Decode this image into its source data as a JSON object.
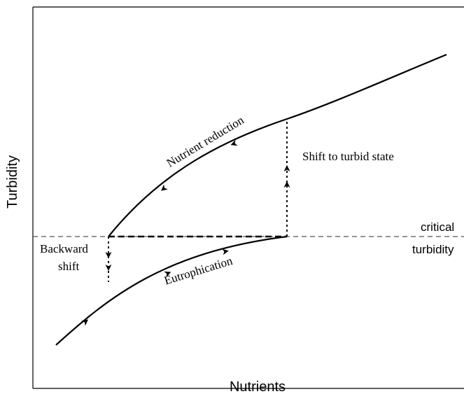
{
  "axes": {
    "x_label": "Nutrients",
    "y_label": "Turbidity"
  },
  "threshold": {
    "label_line1": "critical",
    "label_line2": "turbidity"
  },
  "curves": {
    "upper_label": "Nutrient reduction",
    "lower_label": "Eutrophication"
  },
  "shifts": {
    "forward_label": "Shift to turbid state",
    "backward_label_line1": "Backward",
    "backward_label_line2": "shift"
  },
  "colors": {
    "ink": "#000000",
    "background": "#ffffff",
    "threshold_line": "#555555"
  }
}
